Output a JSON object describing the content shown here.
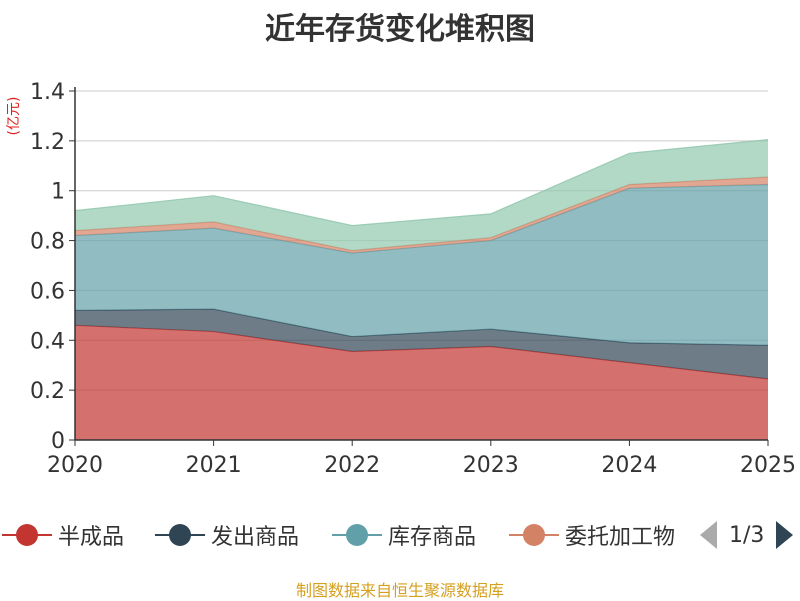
{
  "chart_data": {
    "type": "area",
    "stacked": true,
    "title": "近年存货变化堆积图",
    "ylabel": "(亿元)",
    "xlabel": "",
    "categories": [
      "2020",
      "2021",
      "2022",
      "2023",
      "2024",
      "2025"
    ],
    "ylim": [
      0,
      1.4
    ],
    "yticks": [
      "0",
      "0.2",
      "0.4",
      "0.6",
      "0.8",
      "1",
      "1.2",
      "1.4"
    ],
    "series": [
      {
        "name": "半成品",
        "color": "#c23531",
        "values": [
          0.46,
          0.435,
          0.355,
          0.375,
          0.31,
          0.245
        ]
      },
      {
        "name": "发出商品",
        "color": "#2f4554",
        "values": [
          0.06,
          0.09,
          0.06,
          0.07,
          0.08,
          0.135
        ]
      },
      {
        "name": "库存商品",
        "color": "#61a0a8",
        "values": [
          0.3,
          0.325,
          0.335,
          0.355,
          0.62,
          0.645
        ]
      },
      {
        "name": "委托加工物",
        "color": "#d48265",
        "values": [
          0.02,
          0.025,
          0.01,
          0.012,
          0.015,
          0.03
        ]
      },
      {
        "name": "",
        "color": "#91c7ae",
        "values": [
          0.08,
          0.105,
          0.1,
          0.095,
          0.125,
          0.15
        ]
      }
    ],
    "legend_position": "bottom",
    "grid": true
  },
  "legend": {
    "items": [
      "半成品",
      "发出商品",
      "库存商品",
      "委托加工物"
    ],
    "pager": "1/3"
  },
  "footer": {
    "source": "制图数据来自恒生聚源数据库"
  }
}
